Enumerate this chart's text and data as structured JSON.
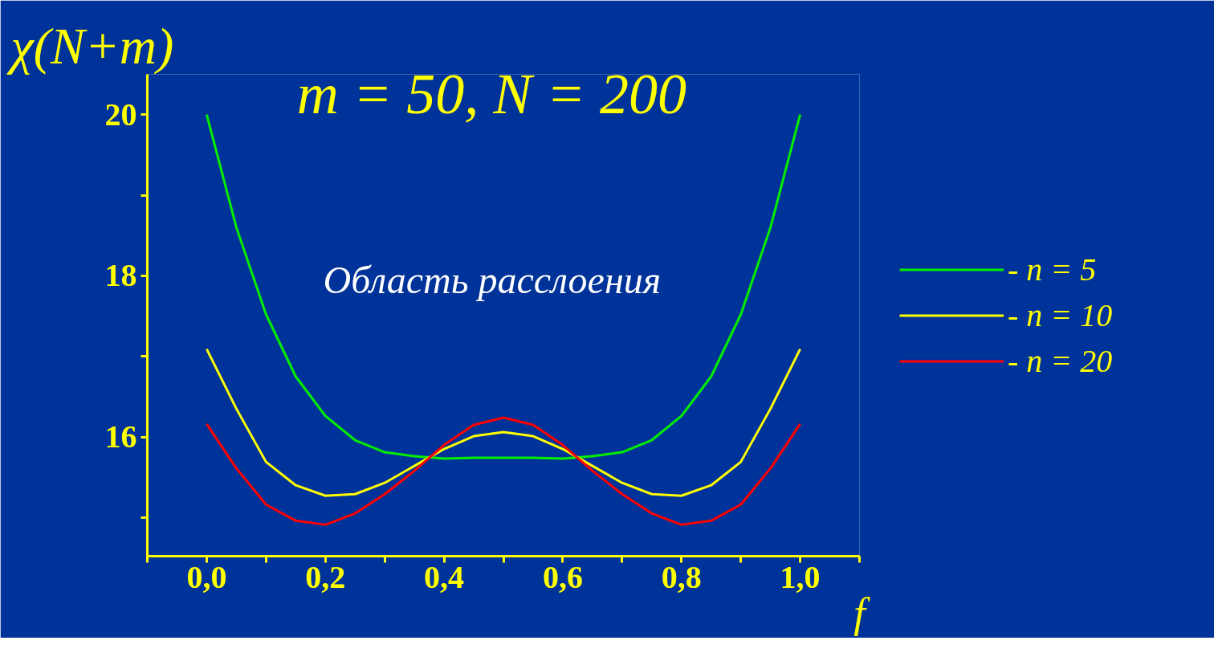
{
  "chart_data": {
    "type": "line",
    "title": "m = 50, N = 200",
    "ylabel": "χ(N+m)",
    "xlabel": "f",
    "annotations": [
      "Область расслоения"
    ],
    "x": [
      0.0,
      0.05,
      0.1,
      0.15,
      0.2,
      0.25,
      0.3,
      0.35,
      0.4,
      0.45,
      0.5,
      0.55,
      0.6,
      0.65,
      0.7,
      0.75,
      0.8,
      0.85,
      0.9,
      0.95,
      1.0
    ],
    "series": [
      {
        "name": "- n = 5",
        "color": "#00ee00",
        "values": [
          20.0,
          18.6,
          17.52,
          16.75,
          16.26,
          15.96,
          15.81,
          15.76,
          15.73,
          15.74,
          15.74,
          15.74,
          15.73,
          15.76,
          15.81,
          15.96,
          16.26,
          16.75,
          17.52,
          18.6,
          20.0
        ]
      },
      {
        "name": "- n = 10",
        "color": "#ffff00",
        "values": [
          17.09,
          16.35,
          15.69,
          15.4,
          15.27,
          15.29,
          15.43,
          15.64,
          15.85,
          16.01,
          16.06,
          16.01,
          15.85,
          15.64,
          15.43,
          15.29,
          15.27,
          15.4,
          15.69,
          16.35,
          17.09
        ]
      },
      {
        "name": "- n = 20",
        "color": "#ff0000",
        "values": [
          16.16,
          15.61,
          15.16,
          14.96,
          14.91,
          15.05,
          15.29,
          15.58,
          15.9,
          16.15,
          16.24,
          16.15,
          15.9,
          15.58,
          15.29,
          15.05,
          14.91,
          14.96,
          15.16,
          15.61,
          16.16
        ]
      }
    ],
    "xlim": [
      -0.1,
      1.1
    ],
    "xticks": [
      {
        "value": -0.1,
        "label": null
      },
      {
        "value": 0.0,
        "label": "0,0"
      },
      {
        "value": 0.1,
        "label": null
      },
      {
        "value": 0.2,
        "label": "0,2"
      },
      {
        "value": 0.3,
        "label": null
      },
      {
        "value": 0.4,
        "label": "0,4"
      },
      {
        "value": 0.5,
        "label": null
      },
      {
        "value": 0.6,
        "label": "0,6"
      },
      {
        "value": 0.7,
        "label": null
      },
      {
        "value": 0.8,
        "label": "0,8"
      },
      {
        "value": 0.9,
        "label": null
      },
      {
        "value": 1.0,
        "label": "1,0"
      },
      {
        "value": 1.1,
        "label": null
      }
    ],
    "ylim": [
      14.52,
      20.5
    ],
    "yticks": [
      {
        "value": 15,
        "label": null
      },
      16,
      {
        "value": 17,
        "label": null
      },
      18,
      {
        "value": 19,
        "label": null
      },
      20
    ],
    "grid": false,
    "legend": "right",
    "marker": "none",
    "line_style": "solid"
  }
}
